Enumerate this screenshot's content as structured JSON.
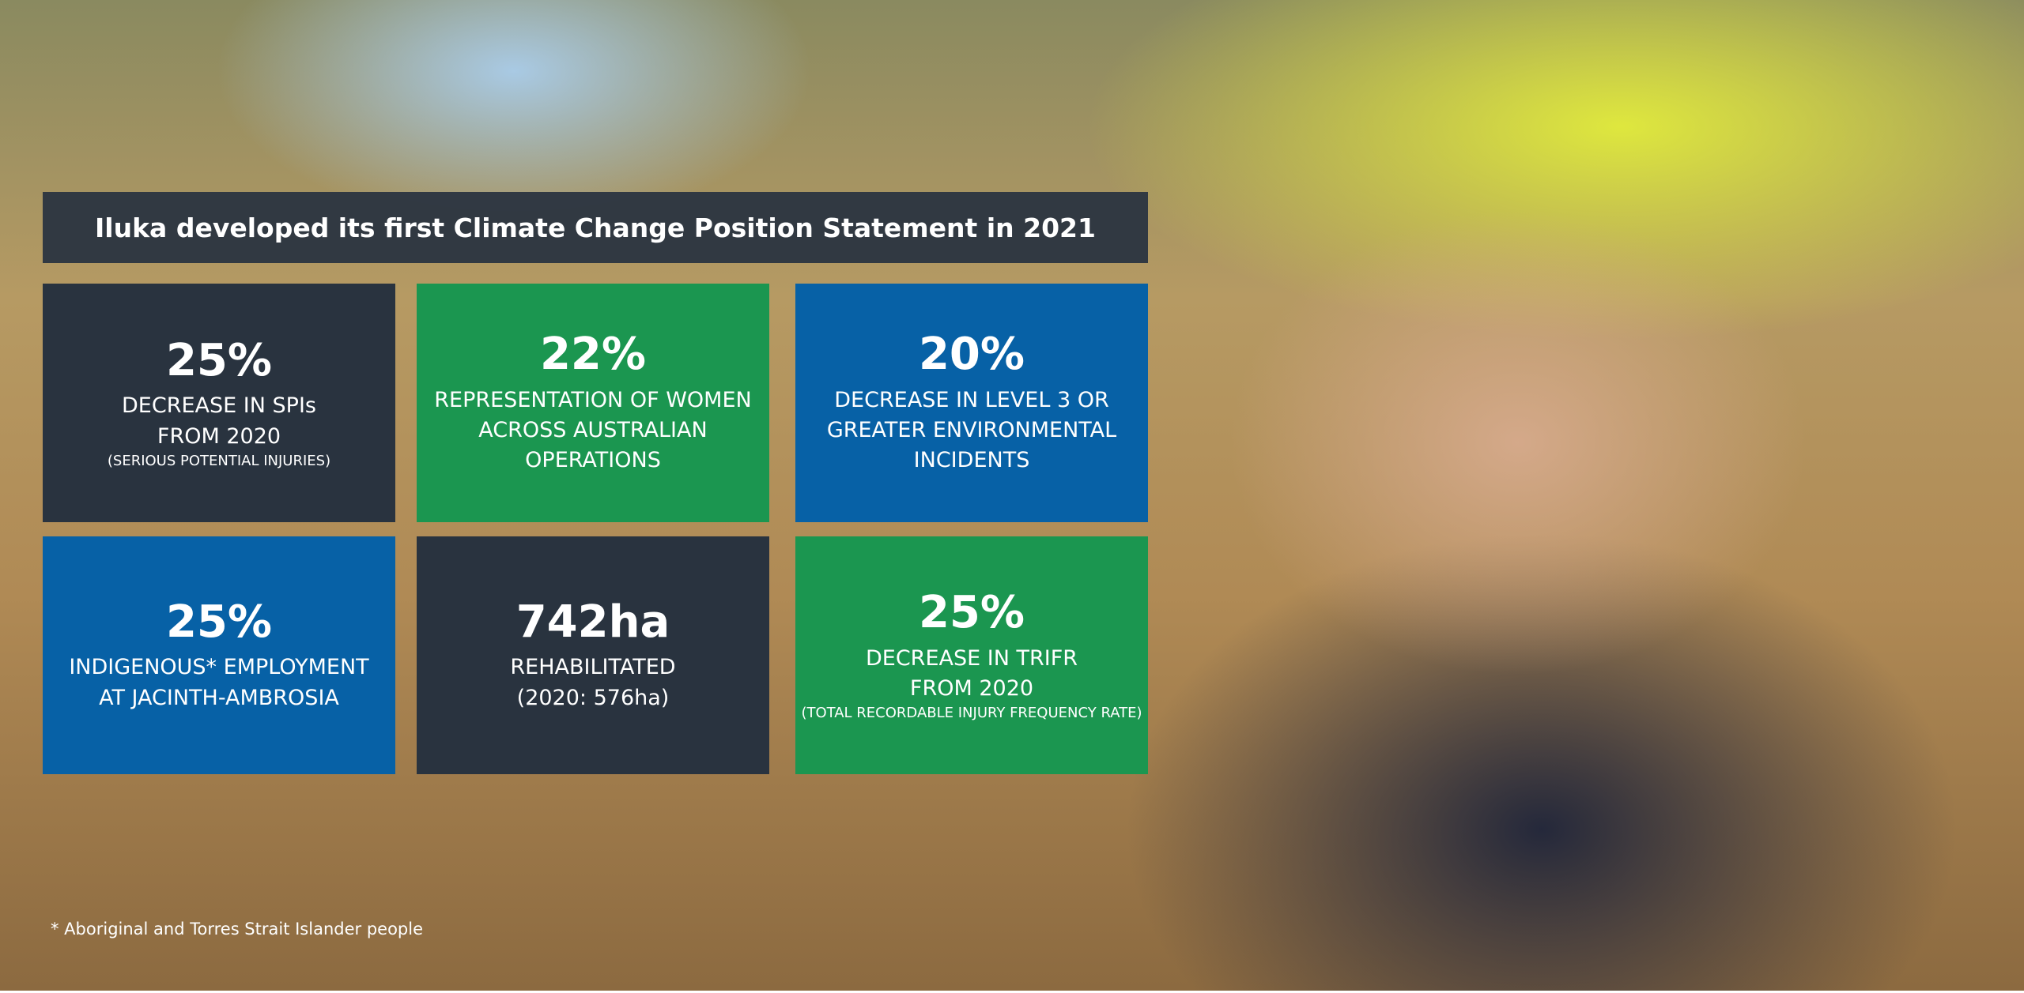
{
  "title": "Iluka developed its first Climate Change Position Statement in 2021",
  "tiles": [
    {
      "value": "25%",
      "lines": [
        "DECREASE IN SPIs",
        "FROM 2020"
      ],
      "note": "(SERIOUS POTENTIAL INJURIES)"
    },
    {
      "value": "22%",
      "lines": [
        "REPRESENTATION OF WOMEN",
        "ACROSS AUSTRALIAN",
        "OPERATIONS"
      ]
    },
    {
      "value": "20%",
      "lines": [
        "DECREASE IN LEVEL 3 OR",
        "GREATER ENVIRONMENTAL",
        "INCIDENTS"
      ]
    },
    {
      "value": "25%",
      "lines": [
        "INDIGENOUS* EMPLOYMENT",
        "AT JACINTH-AMBROSIA"
      ]
    },
    {
      "value": "742ha",
      "lines": [
        "REHABILITATED",
        "(2020: 576ha)"
      ]
    },
    {
      "value": "25%",
      "lines": [
        "DECREASE IN TRIFR",
        "FROM 2020"
      ],
      "note": "(TOTAL RECORDABLE INJURY FREQUENCY RATE)"
    }
  ],
  "footnote": "* Aboriginal and Torres Strait Islander people"
}
